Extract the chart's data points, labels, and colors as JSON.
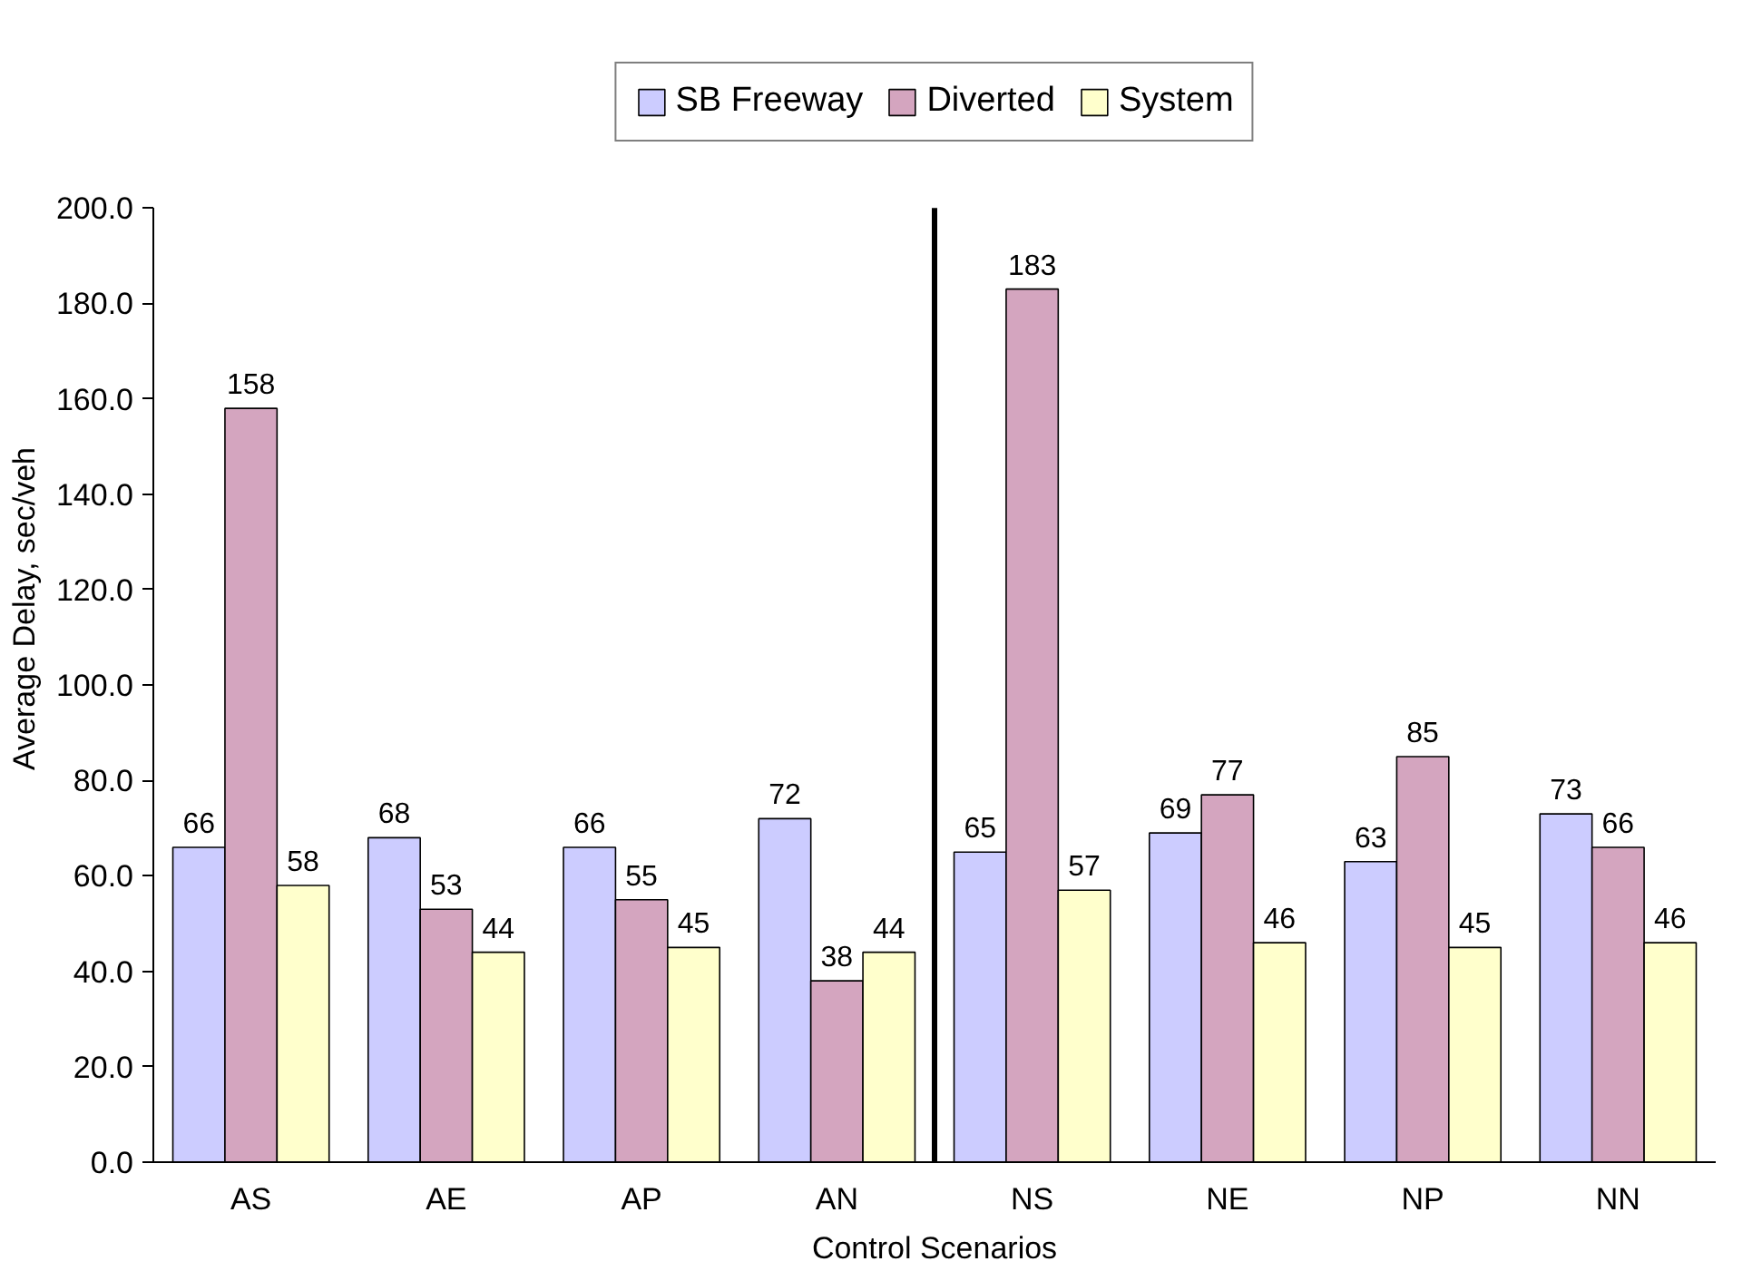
{
  "chart_data": {
    "type": "bar",
    "xlabel": "Control Scenarios",
    "ylabel": "Average Delay, sec/veh",
    "categories": [
      "AS",
      "AE",
      "AP",
      "AN",
      "NS",
      "NE",
      "NP",
      "NN"
    ],
    "series": [
      {
        "name": "SB Freeway",
        "color": "#ccccff",
        "values": [
          66,
          68,
          66,
          72,
          65,
          69,
          63,
          73
        ]
      },
      {
        "name": "Diverted",
        "color": "#d4a5bf",
        "values": [
          158,
          53,
          55,
          38,
          183,
          77,
          85,
          66
        ]
      },
      {
        "name": "System",
        "color": "#ffffcc",
        "values": [
          58,
          44,
          45,
          44,
          57,
          46,
          45,
          46
        ]
      }
    ],
    "ylim": [
      0,
      200
    ],
    "yticks": [
      {
        "value": 0,
        "label": "0.0"
      },
      {
        "value": 20,
        "label": "20.0"
      },
      {
        "value": 40,
        "label": "40.0"
      },
      {
        "value": 60,
        "label": "60.0"
      },
      {
        "value": 80,
        "label": "80.0"
      },
      {
        "value": 100,
        "label": "100.0"
      },
      {
        "value": 120,
        "label": "120.0"
      },
      {
        "value": 140,
        "label": "140.0"
      },
      {
        "value": 160,
        "label": "160.0"
      },
      {
        "value": 180,
        "label": "180.0"
      },
      {
        "value": 200,
        "label": "200.0"
      }
    ],
    "data_labels": true,
    "grid": false,
    "legend": "top"
  }
}
